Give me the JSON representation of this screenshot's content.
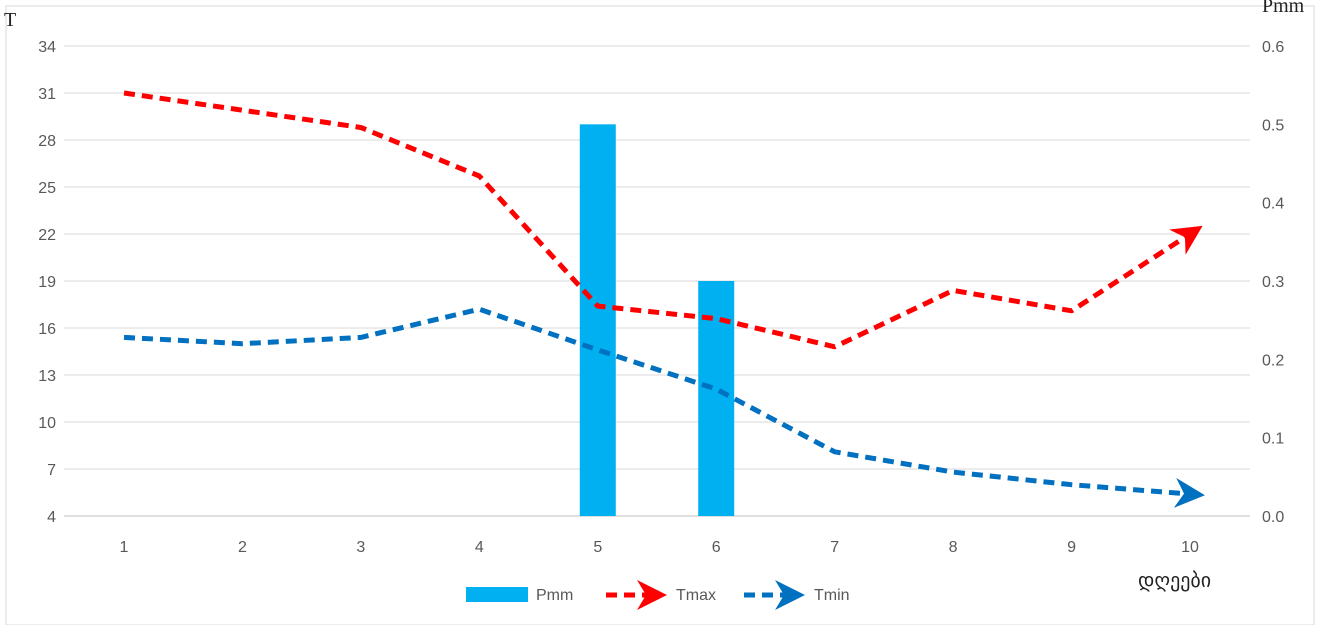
{
  "chart_data": {
    "type": "bar+line",
    "categories": [
      "1",
      "2",
      "3",
      "4",
      "5",
      "6",
      "7",
      "8",
      "9",
      "10"
    ],
    "y_left_label": "T",
    "y_right_label": "Pmm",
    "x_axis_label": "დღეები",
    "y_left_range": [
      4,
      34
    ],
    "y_left_ticks": [
      "4",
      "7",
      "10",
      "13",
      "16",
      "19",
      "22",
      "25",
      "28",
      "31",
      "34"
    ],
    "y_right_range": [
      0,
      0.6
    ],
    "y_right_ticks": [
      "0.0",
      "0.1",
      "0.2",
      "0.3",
      "0.4",
      "0.5",
      "0.6"
    ],
    "grid": "horizontal",
    "legend_position": "bottom",
    "series": [
      {
        "name": "Pmm",
        "kind": "bar",
        "axis": "right",
        "color": "#00B0F0",
        "values": [
          0,
          0,
          0,
          0,
          0.5,
          0.3,
          0,
          0,
          0,
          0
        ]
      },
      {
        "name": "Tmax",
        "kind": "line",
        "axis": "left",
        "style": "dashed-arrow",
        "color": "#FF0000",
        "values": [
          31.0,
          29.9,
          28.8,
          25.7,
          17.4,
          16.6,
          14.8,
          18.4,
          17.1,
          22.0
        ]
      },
      {
        "name": "Tmin",
        "kind": "line",
        "axis": "left",
        "style": "dashed-arrow",
        "color": "#0070C0",
        "values": [
          15.4,
          15.0,
          15.4,
          17.2,
          14.6,
          12.1,
          8.1,
          6.8,
          6.0,
          5.4
        ]
      }
    ]
  }
}
